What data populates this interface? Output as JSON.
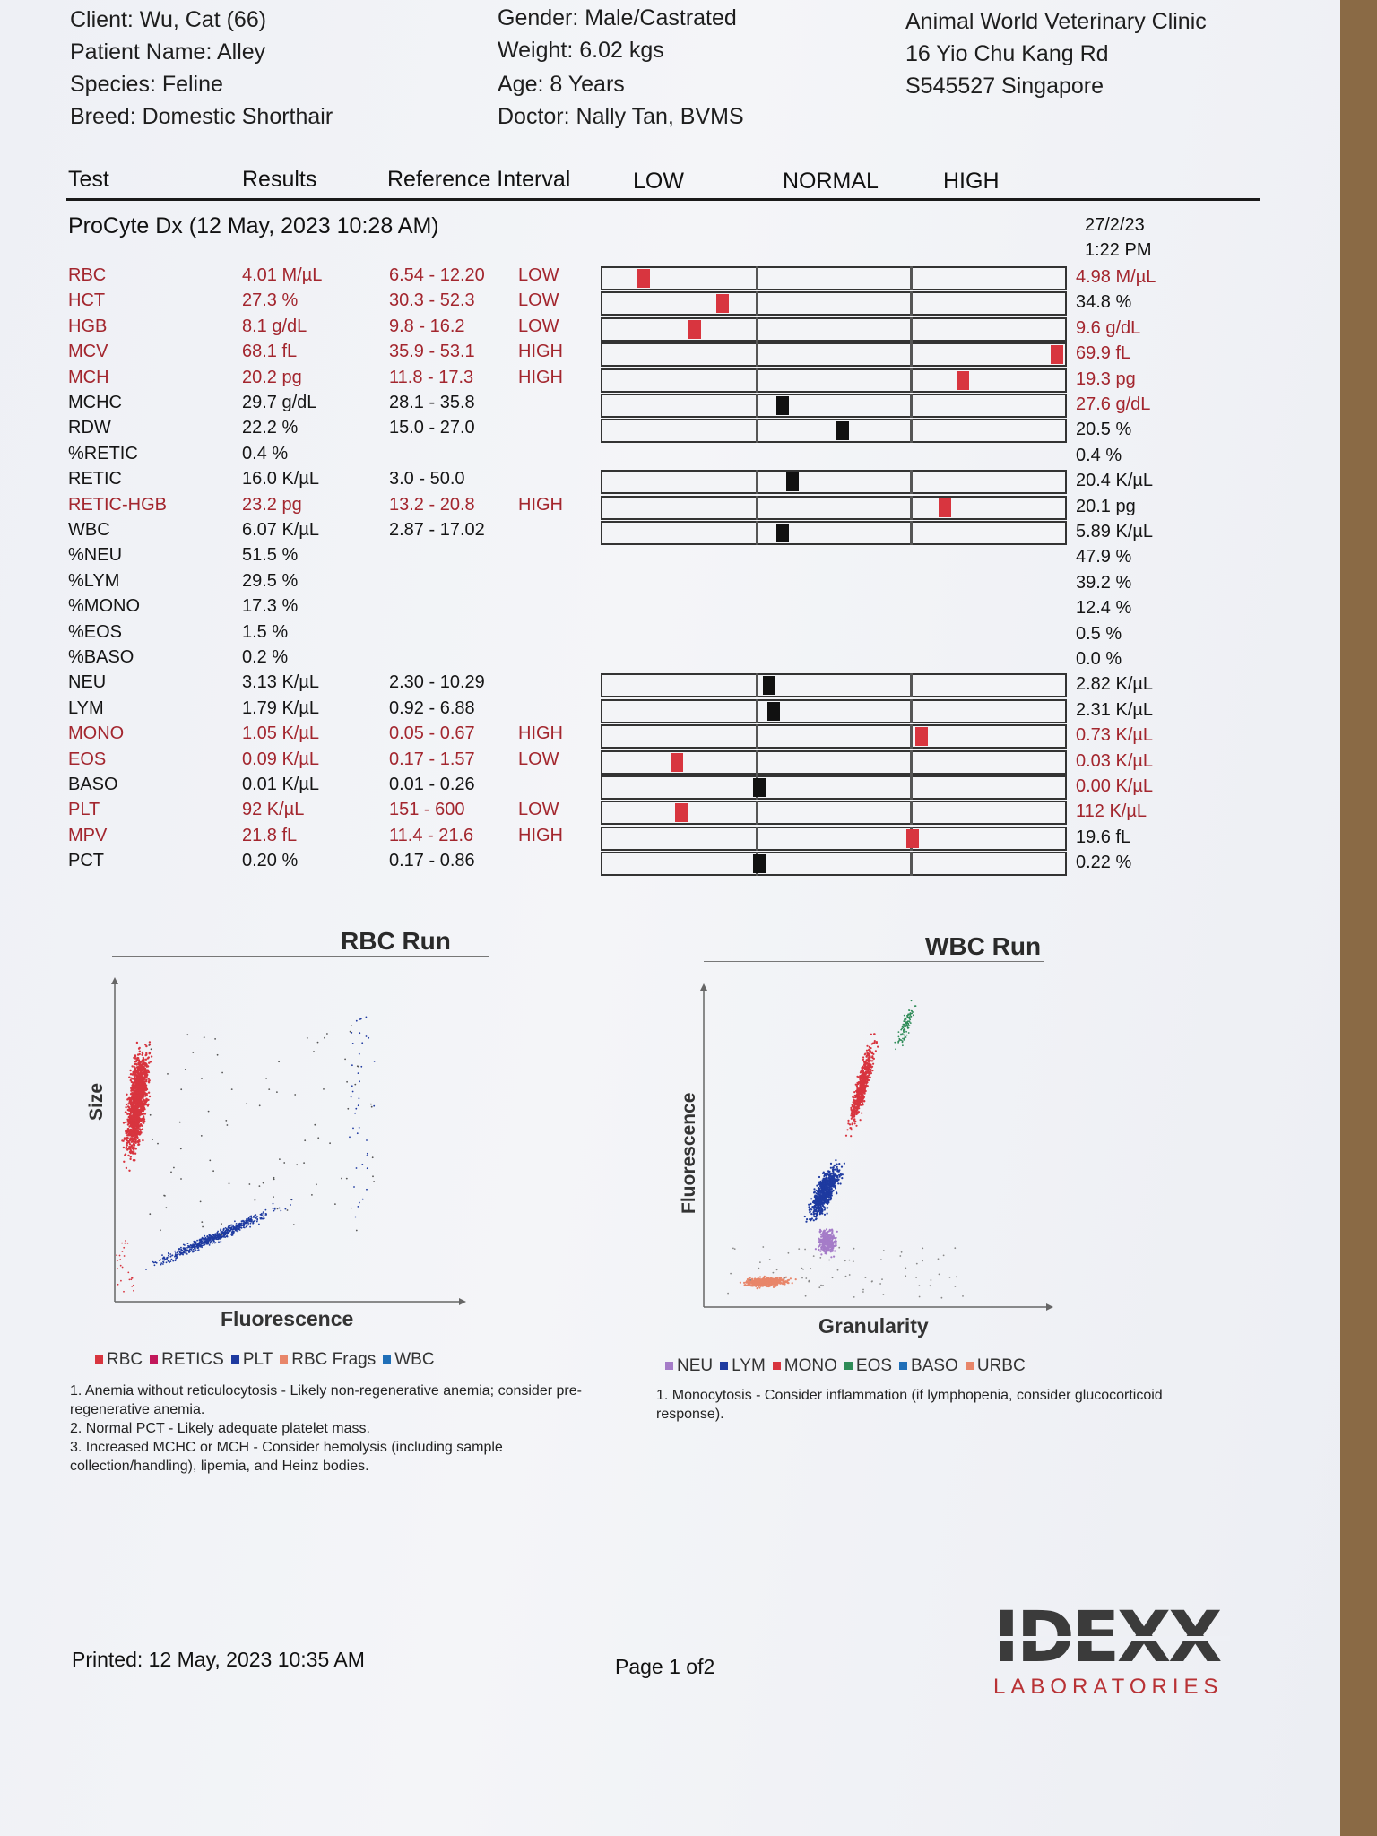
{
  "header": {
    "client": "Client: Wu, Cat (66)",
    "patient": "Patient Name: Alley",
    "species": "Species: Feline",
    "breed": "Breed: Domestic Shorthair",
    "gender": "Gender: Male/Castrated",
    "weight": "Weight: 6.02 kgs",
    "age": "Age: 8 Years",
    "doctor": "Doctor: Nally Tan, BVMS",
    "clinic_name": "Animal World Veterinary Clinic",
    "clinic_address": "16 Yio Chu Kang Rd",
    "clinic_postcode": "S545527 Singapore"
  },
  "columns": {
    "test": "Test",
    "results": "Results",
    "reference": "Reference Interval",
    "low": "LOW",
    "normal": "NORMAL",
    "high": "HIGH"
  },
  "run": {
    "title": "ProCyte Dx (12 May, 2023 10:28 AM)",
    "prev_date": "27/2/23",
    "prev_time": "1:22 PM"
  },
  "rows": [
    {
      "test": "RBC",
      "result": "4.01 M/µL",
      "ref": "6.54 - 12.20",
      "flag": "LOW",
      "prev": "4.98 M/µL",
      "abnormal": true,
      "prev_abnormal": true,
      "pos": 0.09
    },
    {
      "test": "HCT",
      "result": "27.3 %",
      "ref": "30.3 - 52.3",
      "flag": "LOW",
      "prev": "34.8 %",
      "abnormal": true,
      "prev_abnormal": false,
      "pos": 0.26
    },
    {
      "test": "HGB",
      "result": "8.1 g/dL",
      "ref": "9.8 - 16.2",
      "flag": "LOW",
      "prev": "9.6 g/dL",
      "abnormal": true,
      "prev_abnormal": true,
      "pos": 0.2
    },
    {
      "test": "MCV",
      "result": "68.1 fL",
      "ref": "35.9 - 53.1",
      "flag": "HIGH",
      "prev": "69.9 fL",
      "abnormal": true,
      "prev_abnormal": true,
      "pos": 0.985
    },
    {
      "test": "MCH",
      "result": "20.2 pg",
      "ref": "11.8 - 17.3",
      "flag": "HIGH",
      "prev": "19.3 pg",
      "abnormal": true,
      "prev_abnormal": true,
      "pos": 0.78
    },
    {
      "test": "MCHC",
      "result": "29.7 g/dL",
      "ref": "28.1 - 35.8",
      "flag": "",
      "prev": "27.6 g/dL",
      "abnormal": false,
      "prev_abnormal": true,
      "pos": 0.39
    },
    {
      "test": "RDW",
      "result": "22.2 %",
      "ref": "15.0 - 27.0",
      "flag": "",
      "prev": "20.5 %",
      "abnormal": false,
      "prev_abnormal": false,
      "pos": 0.52
    },
    {
      "test": "%RETIC",
      "result": "0.4 %",
      "ref": "",
      "flag": "",
      "prev": "0.4 %",
      "abnormal": false,
      "prev_abnormal": false,
      "pos": null
    },
    {
      "test": "RETIC",
      "result": "16.0 K/µL",
      "ref": "3.0 - 50.0",
      "flag": "",
      "prev": "20.4 K/µL",
      "abnormal": false,
      "prev_abnormal": false,
      "pos": 0.41
    },
    {
      "test": "RETIC-HGB",
      "result": "23.2 pg",
      "ref": "13.2 - 20.8",
      "flag": "HIGH",
      "prev": "20.1 pg",
      "abnormal": true,
      "prev_abnormal": false,
      "pos": 0.74
    },
    {
      "test": "WBC",
      "result": "6.07 K/µL",
      "ref": "2.87 - 17.02",
      "flag": "",
      "prev": "5.89 K/µL",
      "abnormal": false,
      "prev_abnormal": false,
      "pos": 0.39
    },
    {
      "test": "%NEU",
      "result": "51.5 %",
      "ref": "",
      "flag": "",
      "prev": "47.9 %",
      "abnormal": false,
      "prev_abnormal": false,
      "pos": null
    },
    {
      "test": "%LYM",
      "result": "29.5 %",
      "ref": "",
      "flag": "",
      "prev": "39.2 %",
      "abnormal": false,
      "prev_abnormal": false,
      "pos": null
    },
    {
      "test": "%MONO",
      "result": "17.3 %",
      "ref": "",
      "flag": "",
      "prev": "12.4 %",
      "abnormal": false,
      "prev_abnormal": false,
      "pos": null
    },
    {
      "test": "%EOS",
      "result": "1.5 %",
      "ref": "",
      "flag": "",
      "prev": "0.5 %",
      "abnormal": false,
      "prev_abnormal": false,
      "pos": null
    },
    {
      "test": "%BASO",
      "result": "0.2 %",
      "ref": "",
      "flag": "",
      "prev": "0.0 %",
      "abnormal": false,
      "prev_abnormal": false,
      "pos": null
    },
    {
      "test": "NEU",
      "result": "3.13 K/µL",
      "ref": "2.30 - 10.29",
      "flag": "",
      "prev": "2.82 K/µL",
      "abnormal": false,
      "prev_abnormal": false,
      "pos": 0.36
    },
    {
      "test": "LYM",
      "result": "1.79 K/µL",
      "ref": "0.92 - 6.88",
      "flag": "",
      "prev": "2.31 K/µL",
      "abnormal": false,
      "prev_abnormal": false,
      "pos": 0.37
    },
    {
      "test": "MONO",
      "result": "1.05 K/µL",
      "ref": "0.05 - 0.67",
      "flag": "HIGH",
      "prev": "0.73 K/µL",
      "abnormal": true,
      "prev_abnormal": true,
      "pos": 0.69
    },
    {
      "test": "EOS",
      "result": "0.09 K/µL",
      "ref": "0.17 - 1.57",
      "flag": "LOW",
      "prev": "0.03 K/µL",
      "abnormal": true,
      "prev_abnormal": true,
      "pos": 0.16
    },
    {
      "test": "BASO",
      "result": "0.01 K/µL",
      "ref": "0.01 - 0.26",
      "flag": "",
      "prev": "0.00 K/µL",
      "abnormal": false,
      "prev_abnormal": true,
      "pos": 0.34
    },
    {
      "test": "PLT",
      "result": "92 K/µL",
      "ref": "151 - 600",
      "flag": "LOW",
      "prev": "112 K/µL",
      "abnormal": true,
      "prev_abnormal": true,
      "pos": 0.17
    },
    {
      "test": "MPV",
      "result": "21.8 fL",
      "ref": "11.4 - 21.6",
      "flag": "HIGH",
      "prev": "19.6 fL",
      "abnormal": true,
      "prev_abnormal": false,
      "pos": 0.67
    },
    {
      "test": "PCT",
      "result": "0.20 %",
      "ref": "0.17 - 0.86",
      "flag": "",
      "prev": "0.22 %",
      "abnormal": false,
      "prev_abnormal": false,
      "pos": 0.34
    }
  ],
  "rbc_chart": {
    "title": "RBC Run",
    "xlabel": "Fluorescence",
    "ylabel": "Size",
    "legend": [
      {
        "label": "RBC",
        "color": "#d8353f"
      },
      {
        "label": "RETICS",
        "color": "#c2185b"
      },
      {
        "label": "PLT",
        "color": "#1e3aa0"
      },
      {
        "label": "RBC Frags",
        "color": "#e8866a"
      },
      {
        "label": "WBC",
        "color": "#1f6fb8"
      }
    ],
    "notes": [
      "1. Anemia without reticulocytosis - Likely non-regenerative anemia; consider pre-regenerative anemia.",
      "2. Normal PCT - Likely adequate platelet mass.",
      "3. Increased MCHC or MCH - Consider hemolysis (including sample collection/handling), lipemia, and Heinz bodies."
    ]
  },
  "wbc_chart": {
    "title": "WBC Run",
    "xlabel": "Granularity",
    "ylabel": "Fluorescence",
    "legend": [
      {
        "label": "NEU",
        "color": "#a57cc8"
      },
      {
        "label": "LYM",
        "color": "#1e3aa0"
      },
      {
        "label": "MONO",
        "color": "#d8353f"
      },
      {
        "label": "EOS",
        "color": "#2e8b57"
      },
      {
        "label": "BASO",
        "color": "#1f6fb8"
      },
      {
        "label": "URBC",
        "color": "#e8866a"
      }
    ],
    "notes": [
      "1. Monocytosis - Consider inflammation (if lymphopenia, consider glucocorticoid response)."
    ]
  },
  "footer": {
    "printed": "Printed: 12 May, 2023 10:35 AM",
    "page": "Page 1 of2",
    "logo_text": "IDEXX",
    "logo_sub": "LABORATORIES"
  }
}
